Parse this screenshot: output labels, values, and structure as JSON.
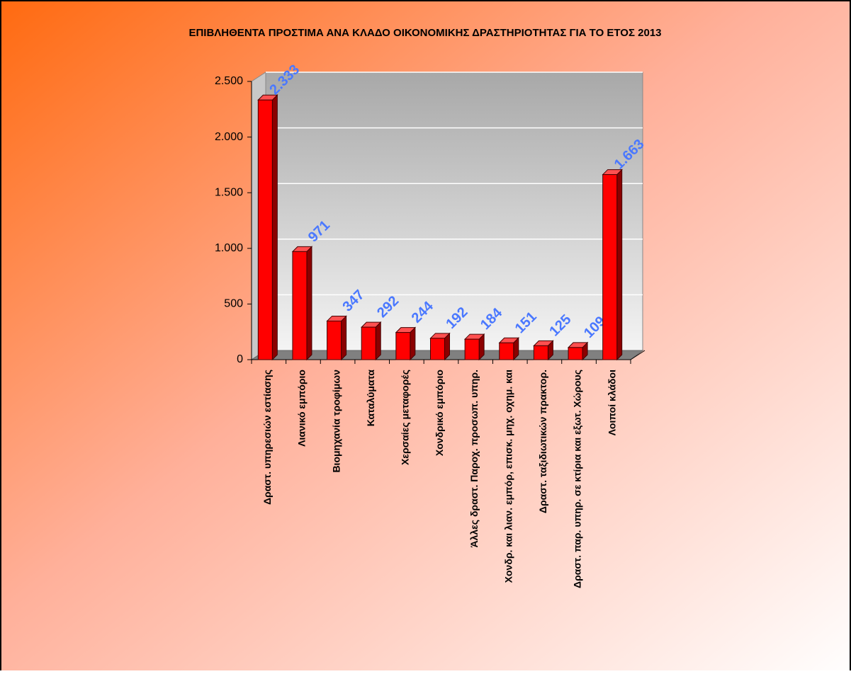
{
  "chart_data": {
    "type": "bar",
    "title": "ΕΠΙΒΛΗΘΕΝΤΑ ΠΡΟΣΤΙΜΑ ΑΝΑ ΚΛΑΔΟ ΟΙΚΟΝΟΜΙΚΗΣ ΔΡΑΣΤΗΡΙΟΤΗΤΑΣ ΓΙΑ ΤΟ ΕΤΟΣ 2013",
    "categories": [
      "Δραστ. υπηρεσιών εστίασης",
      "Λιανικό εμπόριο",
      "Βιομηχανία τροφίμων",
      "Καταλύματα",
      "Χερσαίες μεταφορές",
      "Χονδρικό εμπόριο",
      "Άλλες δραστ. Παροχ. προσωπ. υπηρ.",
      "Χονδρ. και λιαν. εμπόρ, επισκ. μηχ. οχημ. και",
      "Δραστ. ταξιδιωτικών πρακτορ.",
      "Δραστ. παρ. υπηρ. σε κτίρια και εξωτ. Χώρους",
      "Λοιποί κλάδοι"
    ],
    "values": [
      2333,
      971,
      347,
      292,
      244,
      192,
      184,
      151,
      125,
      109,
      1663
    ],
    "value_labels": [
      "2.333",
      "971",
      "347",
      "292",
      "244",
      "192",
      "184",
      "151",
      "125",
      "109",
      "1.663"
    ],
    "color": "#ff0000",
    "ylim": [
      0,
      2500
    ],
    "yticks": [
      0,
      500,
      {
        "value": 1000,
        "label": "1.000"
      },
      {
        "value": 1500,
        "label": "1.500"
      },
      {
        "value": 2000,
        "label": "2.000"
      },
      {
        "value": 2500,
        "label": "2.500"
      }
    ],
    "grid": true
  }
}
